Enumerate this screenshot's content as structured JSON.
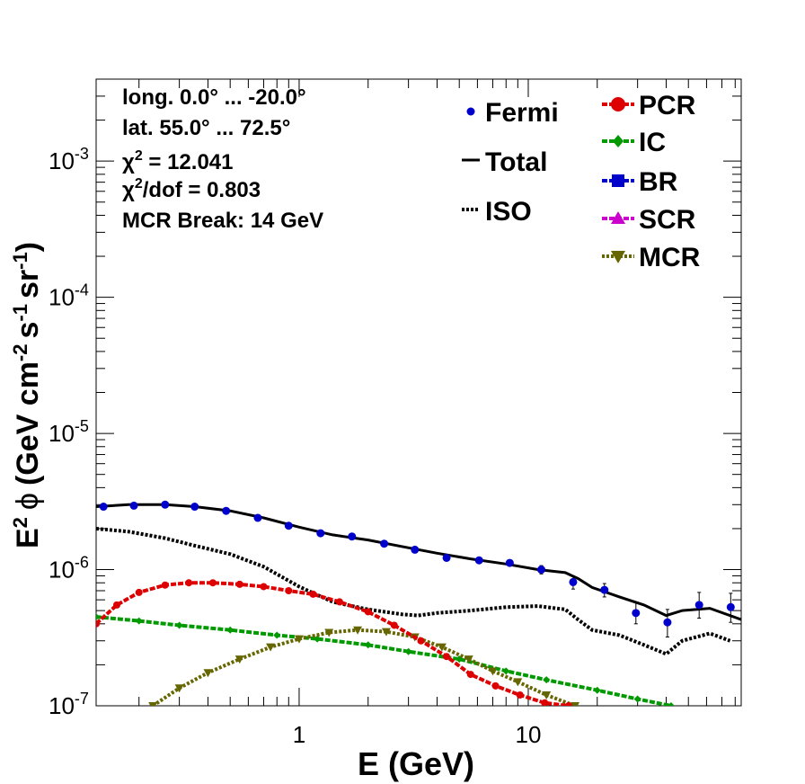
{
  "chart_data": {
    "type": "line",
    "xlabel": "E (GeV)",
    "ylabel": "E² ϕ (GeV cm⁻² s⁻¹ sr⁻¹)",
    "ylabel_parts": {
      "e": "E",
      "e_sup": "2",
      "phi": "ϕ",
      "open": "(GeV cm",
      "cm_sup": "-2",
      "s": "s",
      "s_sup": "-1",
      "sr": "sr",
      "sr_sup": "-1",
      "close": ")"
    },
    "x_scale": "log",
    "y_scale": "log",
    "xlim": [
      0.13,
      85
    ],
    "ylim": [
      1e-07,
      0.004
    ],
    "x_ticks": [
      {
        "value": 1,
        "label": "1"
      },
      {
        "value": 10,
        "label": "10"
      }
    ],
    "y_ticks": [
      {
        "value": 1e-07,
        "base": "10",
        "exp": "-7"
      },
      {
        "value": 1e-06,
        "base": "10",
        "exp": "-6"
      },
      {
        "value": 1e-05,
        "base": "10",
        "exp": "-5"
      },
      {
        "value": 0.0001,
        "base": "10",
        "exp": "-4"
      },
      {
        "value": 0.001,
        "base": "10",
        "exp": "-3"
      }
    ],
    "annotations": {
      "long": "long. 0.0° ... -20.0°",
      "lat": "lat. 55.0° ... 72.5°",
      "chi2_sym": "χ",
      "chi2_sup": "2",
      "chi2_val": " = 12.041",
      "chidof_sym": "χ",
      "chidof_sup": "2",
      "chidof_val": "/dof = 0.803",
      "mcr_break": "MCR Break: 14 GeV"
    },
    "legend": [
      {
        "name": "Fermi",
        "color": "#0000cc",
        "style": "points"
      },
      {
        "name": "Total",
        "color": "#000000",
        "style": "line"
      },
      {
        "name": "ISO",
        "color": "#000000",
        "style": "dotted"
      },
      {
        "name": "PCR",
        "color": "#dd0000",
        "style": "circle-line"
      },
      {
        "name": "IC",
        "color": "#009900",
        "style": "diamond-line"
      },
      {
        "name": "BR",
        "color": "#0000cc",
        "style": "square-line"
      },
      {
        "name": "SCR",
        "color": "#cc00cc",
        "style": "triangle-up-line"
      },
      {
        "name": "MCR",
        "color": "#666600",
        "style": "triangle-down-line"
      }
    ],
    "fermi": {
      "x": [
        0.14,
        0.19,
        0.26,
        0.35,
        0.48,
        0.66,
        0.9,
        1.24,
        1.7,
        2.35,
        3.2,
        4.4,
        6.1,
        8.3,
        11.4,
        15.7,
        21.5,
        29.5,
        40.5,
        55.7,
        76.5
      ],
      "y": [
        2.9e-06,
        2.95e-06,
        3e-06,
        2.9e-06,
        2.7e-06,
        2.4e-06,
        2.1e-06,
        1.85e-06,
        1.75e-06,
        1.55e-06,
        1.4e-06,
        1.22e-06,
        1.17e-06,
        1.12e-06,
        1e-06,
        8.1e-07,
        7.1e-07,
        4.8e-07,
        4.1e-07,
        5.5e-07,
        5.3e-07
      ],
      "err_low": [
        0,
        0,
        0,
        0,
        0,
        0,
        0,
        0,
        0,
        0,
        0,
        0,
        0,
        0,
        7e-08,
        9e-08,
        8e-08,
        8e-08,
        9e-08,
        1.1e-07,
        1.2e-07
      ],
      "err_high": [
        0,
        0,
        0,
        0,
        0,
        0,
        0,
        0,
        0,
        0,
        0,
        0,
        0,
        0,
        7e-08,
        9e-08,
        8e-08,
        9e-08,
        1e-07,
        1.3e-07,
        1.4e-07
      ]
    },
    "total": {
      "x": [
        0.13,
        0.18,
        0.26,
        0.35,
        0.5,
        0.7,
        1.0,
        1.4,
        2.0,
        2.8,
        4.0,
        5.6,
        8.0,
        11.0,
        14.5,
        16.5,
        19.0,
        25.0,
        32.0,
        40.0,
        47.0,
        62.0,
        85.0
      ],
      "y": [
        2.9e-06,
        3e-06,
        3e-06,
        2.9e-06,
        2.7e-06,
        2.4e-06,
        2.05e-06,
        1.8e-06,
        1.65e-06,
        1.48e-06,
        1.32e-06,
        1.2e-06,
        1.1e-06,
        1e-06,
        9.5e-07,
        8.6e-07,
        7.4e-07,
        6.3e-07,
        5.5e-07,
        4.6e-07,
        5e-07,
        5.2e-07,
        4.3e-07
      ]
    },
    "iso": {
      "x": [
        0.13,
        0.18,
        0.26,
        0.35,
        0.5,
        0.7,
        1.0,
        1.4,
        2.0,
        2.8,
        3.3,
        4.0,
        5.6,
        8.0,
        11.0,
        14.5,
        16.5,
        19.0,
        25.0,
        32.0,
        40.0,
        47.0,
        62.0,
        76.0
      ],
      "y": [
        2e-06,
        1.9e-06,
        1.7e-06,
        1.5e-06,
        1.3e-06,
        1.05e-06,
        7.5e-07,
        5.8e-07,
        5.1e-07,
        4.7e-07,
        4.6e-07,
        4.8e-07,
        5e-07,
        5.3e-07,
        5.4e-07,
        5.1e-07,
        4.3e-07,
        3.6e-07,
        3.3e-07,
        2.8e-07,
        2.4e-07,
        3e-07,
        3.4e-07,
        3e-07
      ]
    },
    "pcr": {
      "x": [
        0.13,
        0.16,
        0.2,
        0.26,
        0.33,
        0.42,
        0.55,
        0.7,
        0.9,
        1.15,
        1.5,
        2.0,
        2.6,
        3.4,
        4.4,
        5.6,
        7.2,
        9.2,
        11.8,
        15.0
      ],
      "y": [
        4e-07,
        5.5e-07,
        6.8e-07,
        7.7e-07,
        8e-07,
        8e-07,
        7.8e-07,
        7.5e-07,
        7e-07,
        6.6e-07,
        5.8e-07,
        4.9e-07,
        3.9e-07,
        3e-07,
        2.3e-07,
        1.7e-07,
        1.4e-07,
        1.2e-07,
        1.05e-07,
        1e-07
      ]
    },
    "ic": {
      "x": [
        0.13,
        0.2,
        0.3,
        0.5,
        0.8,
        1.2,
        2.0,
        3.0,
        5.0,
        8.0,
        12.0,
        20.0,
        30.0,
        42.0
      ],
      "y": [
        4.5e-07,
        4.2e-07,
        3.9e-07,
        3.6e-07,
        3.3e-07,
        3.1e-07,
        2.8e-07,
        2.5e-07,
        2.2e-07,
        1.8e-07,
        1.55e-07,
        1.3e-07,
        1.12e-07,
        1e-07
      ]
    },
    "mcr": {
      "x": [
        0.23,
        0.3,
        0.4,
        0.55,
        0.75,
        1.0,
        1.35,
        1.8,
        2.4,
        3.2,
        4.2,
        5.5,
        7.0,
        9.0,
        12.0,
        16.0
      ],
      "y": [
        1e-07,
        1.35e-07,
        1.75e-07,
        2.2e-07,
        2.7e-07,
        3.1e-07,
        3.45e-07,
        3.6e-07,
        3.5e-07,
        3.2e-07,
        2.7e-07,
        2.2e-07,
        1.8e-07,
        1.5e-07,
        1.2e-07,
        1e-07
      ]
    }
  }
}
